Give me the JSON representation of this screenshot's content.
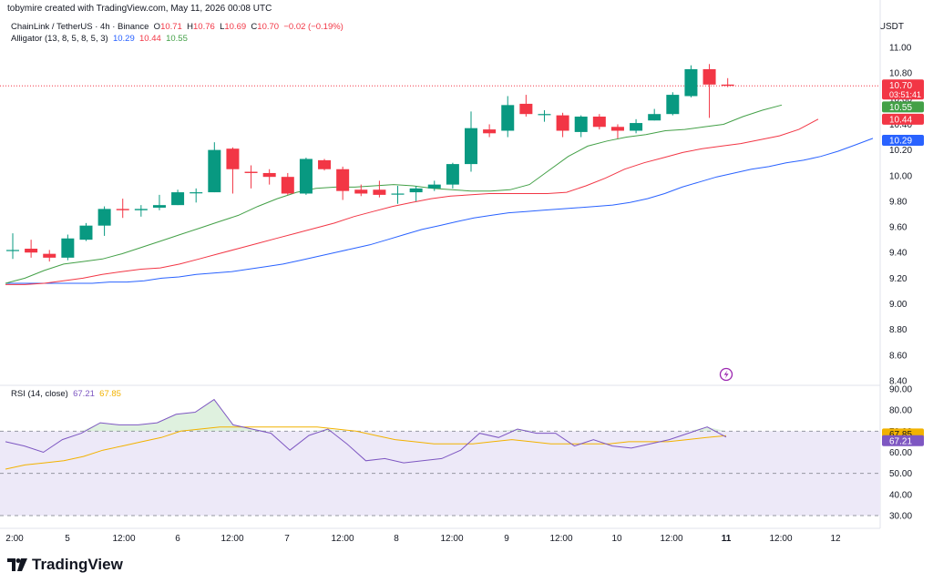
{
  "header": {
    "credit": "tobymire created with TradingView.com, May 11, 2026 00:08 UTC",
    "symbol": "ChainLink / TetherUS · 4h · Binance",
    "o_label": "O",
    "o": "10.71",
    "h_label": "H",
    "h": "10.76",
    "l_label": "L",
    "l": "10.69",
    "c_label": "C",
    "c": "10.70",
    "change": "−0.02 (−0.19%)",
    "alligator_label": "Alligator (13, 8, 5, 8, 5, 3)",
    "alligator_jaw": "10.29",
    "alligator_teeth": "10.44",
    "alligator_lips": "10.55",
    "rsi_label": "RSI (14, close)",
    "rsi_value": "67.21",
    "rsi_ma": "67.85",
    "currency": "USDT"
  },
  "brand": {
    "name": "TradingView"
  },
  "colors": {
    "up": "#089981",
    "down": "#f23645",
    "jaw": "#2962ff",
    "teeth": "#f23645",
    "lips": "#43a047",
    "rsi": "#7e57c2",
    "rsi_ma": "#f2b200"
  },
  "chart_data": [
    {
      "type": "candlestick",
      "title": "ChainLink / TetherUS · 4h · Binance",
      "x_tick_labels": [
        "2:00",
        "5",
        "12:00",
        "6",
        "12:00",
        "7",
        "12:00",
        "8",
        "12:00",
        "9",
        "12:00",
        "10",
        "12:00",
        "11",
        "12:00",
        "12"
      ],
      "ylim": [
        8.4,
        11.1
      ],
      "y_ticks": [
        "11.00",
        "10.80",
        "10.60",
        "10.40",
        "10.20",
        "10.00",
        "9.80",
        "9.60",
        "9.40",
        "9.20",
        "9.00",
        "8.80",
        "8.60",
        "8.40"
      ],
      "last_price": "10.70",
      "countdown": "03:51:41",
      "candles": [
        {
          "o": 9.42,
          "h": 9.55,
          "l": 9.35,
          "c": 9.42
        },
        {
          "o": 9.43,
          "h": 9.5,
          "l": 9.36,
          "c": 9.4
        },
        {
          "o": 9.39,
          "h": 9.42,
          "l": 9.33,
          "c": 9.36
        },
        {
          "o": 9.36,
          "h": 9.54,
          "l": 9.34,
          "c": 9.51
        },
        {
          "o": 9.5,
          "h": 9.63,
          "l": 9.49,
          "c": 9.61
        },
        {
          "o": 9.61,
          "h": 9.76,
          "l": 9.53,
          "c": 9.74
        },
        {
          "o": 9.74,
          "h": 9.82,
          "l": 9.67,
          "c": 9.73
        },
        {
          "o": 9.73,
          "h": 9.77,
          "l": 9.68,
          "c": 9.74
        },
        {
          "o": 9.75,
          "h": 9.85,
          "l": 9.73,
          "c": 9.77
        },
        {
          "o": 9.77,
          "h": 9.89,
          "l": 9.77,
          "c": 9.87
        },
        {
          "o": 9.87,
          "h": 9.9,
          "l": 9.79,
          "c": 9.87
        },
        {
          "o": 9.87,
          "h": 10.26,
          "l": 9.87,
          "c": 10.2
        },
        {
          "o": 10.21,
          "h": 10.22,
          "l": 9.86,
          "c": 10.05
        },
        {
          "o": 10.03,
          "h": 10.08,
          "l": 9.9,
          "c": 10.02
        },
        {
          "o": 10.02,
          "h": 10.05,
          "l": 9.93,
          "c": 9.99
        },
        {
          "o": 9.99,
          "h": 10.02,
          "l": 9.85,
          "c": 9.86
        },
        {
          "o": 9.86,
          "h": 10.14,
          "l": 9.85,
          "c": 10.13
        },
        {
          "o": 10.12,
          "h": 10.13,
          "l": 10.04,
          "c": 10.05
        },
        {
          "o": 10.05,
          "h": 10.07,
          "l": 9.81,
          "c": 9.88
        },
        {
          "o": 9.89,
          "h": 9.93,
          "l": 9.84,
          "c": 9.86
        },
        {
          "o": 9.89,
          "h": 9.96,
          "l": 9.83,
          "c": 9.85
        },
        {
          "o": 9.86,
          "h": 9.92,
          "l": 9.78,
          "c": 9.86
        },
        {
          "o": 9.87,
          "h": 9.92,
          "l": 9.8,
          "c": 9.9
        },
        {
          "o": 9.9,
          "h": 9.96,
          "l": 9.88,
          "c": 9.93
        },
        {
          "o": 9.93,
          "h": 10.1,
          "l": 9.9,
          "c": 10.09
        },
        {
          "o": 10.09,
          "h": 10.5,
          "l": 10.03,
          "c": 10.37
        },
        {
          "o": 10.36,
          "h": 10.4,
          "l": 10.3,
          "c": 10.33
        },
        {
          "o": 10.35,
          "h": 10.62,
          "l": 10.3,
          "c": 10.55
        },
        {
          "o": 10.56,
          "h": 10.63,
          "l": 10.46,
          "c": 10.48
        },
        {
          "o": 10.48,
          "h": 10.51,
          "l": 10.42,
          "c": 10.48
        },
        {
          "o": 10.47,
          "h": 10.49,
          "l": 10.3,
          "c": 10.35
        },
        {
          "o": 10.34,
          "h": 10.47,
          "l": 10.3,
          "c": 10.46
        },
        {
          "o": 10.46,
          "h": 10.48,
          "l": 10.36,
          "c": 10.38
        },
        {
          "o": 10.38,
          "h": 10.4,
          "l": 10.29,
          "c": 10.35
        },
        {
          "o": 10.35,
          "h": 10.44,
          "l": 10.33,
          "c": 10.41
        },
        {
          "o": 10.43,
          "h": 10.52,
          "l": 10.43,
          "c": 10.48
        },
        {
          "o": 10.48,
          "h": 10.65,
          "l": 10.47,
          "c": 10.63
        },
        {
          "o": 10.62,
          "h": 10.86,
          "l": 10.61,
          "c": 10.83
        },
        {
          "o": 10.83,
          "h": 10.87,
          "l": 10.45,
          "c": 10.71
        },
        {
          "o": 10.71,
          "h": 10.76,
          "l": 10.69,
          "c": 10.7
        }
      ],
      "alligator": {
        "jaw": [
          9.16,
          9.16,
          9.16,
          9.16,
          9.16,
          9.16,
          9.17,
          9.17,
          9.18,
          9.2,
          9.21,
          9.23,
          9.24,
          9.25,
          9.27,
          9.29,
          9.31,
          9.34,
          9.37,
          9.4,
          9.43,
          9.46,
          9.5,
          9.54,
          9.58,
          9.61,
          9.64,
          9.67,
          9.69,
          9.71,
          9.72,
          9.73,
          9.74,
          9.75,
          9.76,
          9.77,
          9.79,
          9.82,
          9.86,
          9.91,
          9.95,
          9.99,
          10.02,
          10.05,
          10.07,
          10.1,
          10.12,
          10.15,
          10.19,
          10.24,
          10.29
        ],
        "teeth": [
          9.15,
          9.15,
          9.16,
          9.18,
          9.2,
          9.23,
          9.25,
          9.27,
          9.28,
          9.31,
          9.35,
          9.39,
          9.43,
          9.47,
          9.51,
          9.55,
          9.59,
          9.63,
          9.68,
          9.72,
          9.76,
          9.79,
          9.82,
          9.84,
          9.85,
          9.86,
          9.86,
          9.86,
          9.86,
          9.87,
          9.92,
          9.98,
          10.05,
          10.1,
          10.14,
          10.18,
          10.21,
          10.23,
          10.25,
          10.28,
          10.31,
          10.36,
          10.44
        ],
        "lips": [
          9.16,
          9.2,
          9.26,
          9.31,
          9.33,
          9.35,
          9.39,
          9.44,
          9.49,
          9.54,
          9.59,
          9.64,
          9.69,
          9.76,
          9.82,
          9.87,
          9.9,
          9.91,
          9.91,
          9.92,
          9.93,
          9.92,
          9.9,
          9.89,
          9.88,
          9.88,
          9.89,
          9.93,
          10.04,
          10.15,
          10.23,
          10.27,
          10.3,
          10.32,
          10.35,
          10.36,
          10.38,
          10.4,
          10.46,
          10.51,
          10.55
        ]
      }
    },
    {
      "type": "line",
      "title": "RSI (14, close)",
      "ylim": [
        30,
        90
      ],
      "y_ticks": [
        "90.00",
        "80.00",
        "70.00",
        "60.00",
        "50.00",
        "40.00",
        "30.00"
      ],
      "bands": [
        70,
        50,
        30
      ],
      "series": [
        {
          "name": "RSI",
          "values": [
            65,
            63,
            60,
            66,
            69,
            74,
            73,
            73,
            74,
            78,
            79,
            85,
            73,
            71,
            69,
            61,
            68,
            71,
            64,
            56,
            57,
            55,
            56,
            57,
            61,
            69,
            67,
            71,
            69,
            69,
            63,
            66,
            63,
            62,
            64,
            66,
            69,
            72,
            67.21
          ]
        },
        {
          "name": "RSI MA",
          "values": [
            52,
            54,
            55,
            56,
            58,
            61,
            63,
            65,
            67,
            70,
            71,
            72,
            72,
            72,
            72,
            72,
            72,
            71,
            70,
            68,
            66,
            65,
            64,
            64,
            64,
            65,
            66,
            65,
            64,
            64,
            64,
            64,
            65,
            65,
            65,
            66,
            67,
            67.85
          ]
        }
      ],
      "last_values": [
        "67.85",
        "67.21"
      ]
    }
  ]
}
